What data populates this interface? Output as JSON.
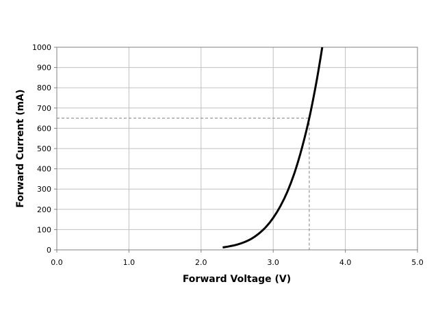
{
  "chart_data": {
    "type": "line",
    "title": "",
    "xlabel": "Forward Voltage (V)",
    "ylabel": "Forward Current (mA)",
    "xlim": [
      0,
      5
    ],
    "ylim": [
      0,
      1000
    ],
    "x_ticks": [
      "0.0",
      "1.0",
      "2.0",
      "3.0",
      "4.0",
      "5.0"
    ],
    "y_ticks": [
      "0",
      "100",
      "200",
      "300",
      "400",
      "500",
      "600",
      "700",
      "800",
      "900",
      "1000"
    ],
    "grid": true,
    "legend": "none",
    "series": [
      {
        "color": "#000000",
        "points": [
          [
            2.3,
            12
          ],
          [
            2.4,
            18
          ],
          [
            2.5,
            26
          ],
          [
            2.6,
            38
          ],
          [
            2.7,
            55
          ],
          [
            2.8,
            80
          ],
          [
            2.9,
            113
          ],
          [
            3.0,
            158
          ],
          [
            3.1,
            216
          ],
          [
            3.2,
            290
          ],
          [
            3.3,
            385
          ],
          [
            3.4,
            505
          ],
          [
            3.5,
            650
          ],
          [
            3.6,
            830
          ],
          [
            3.68,
            1000
          ]
        ]
      }
    ],
    "reference_lines": {
      "x": 3.5,
      "y": 650,
      "color": "#808080",
      "style": "dashed"
    },
    "colors": {
      "grid": "#c0c0c0",
      "axis": "#808080"
    }
  }
}
